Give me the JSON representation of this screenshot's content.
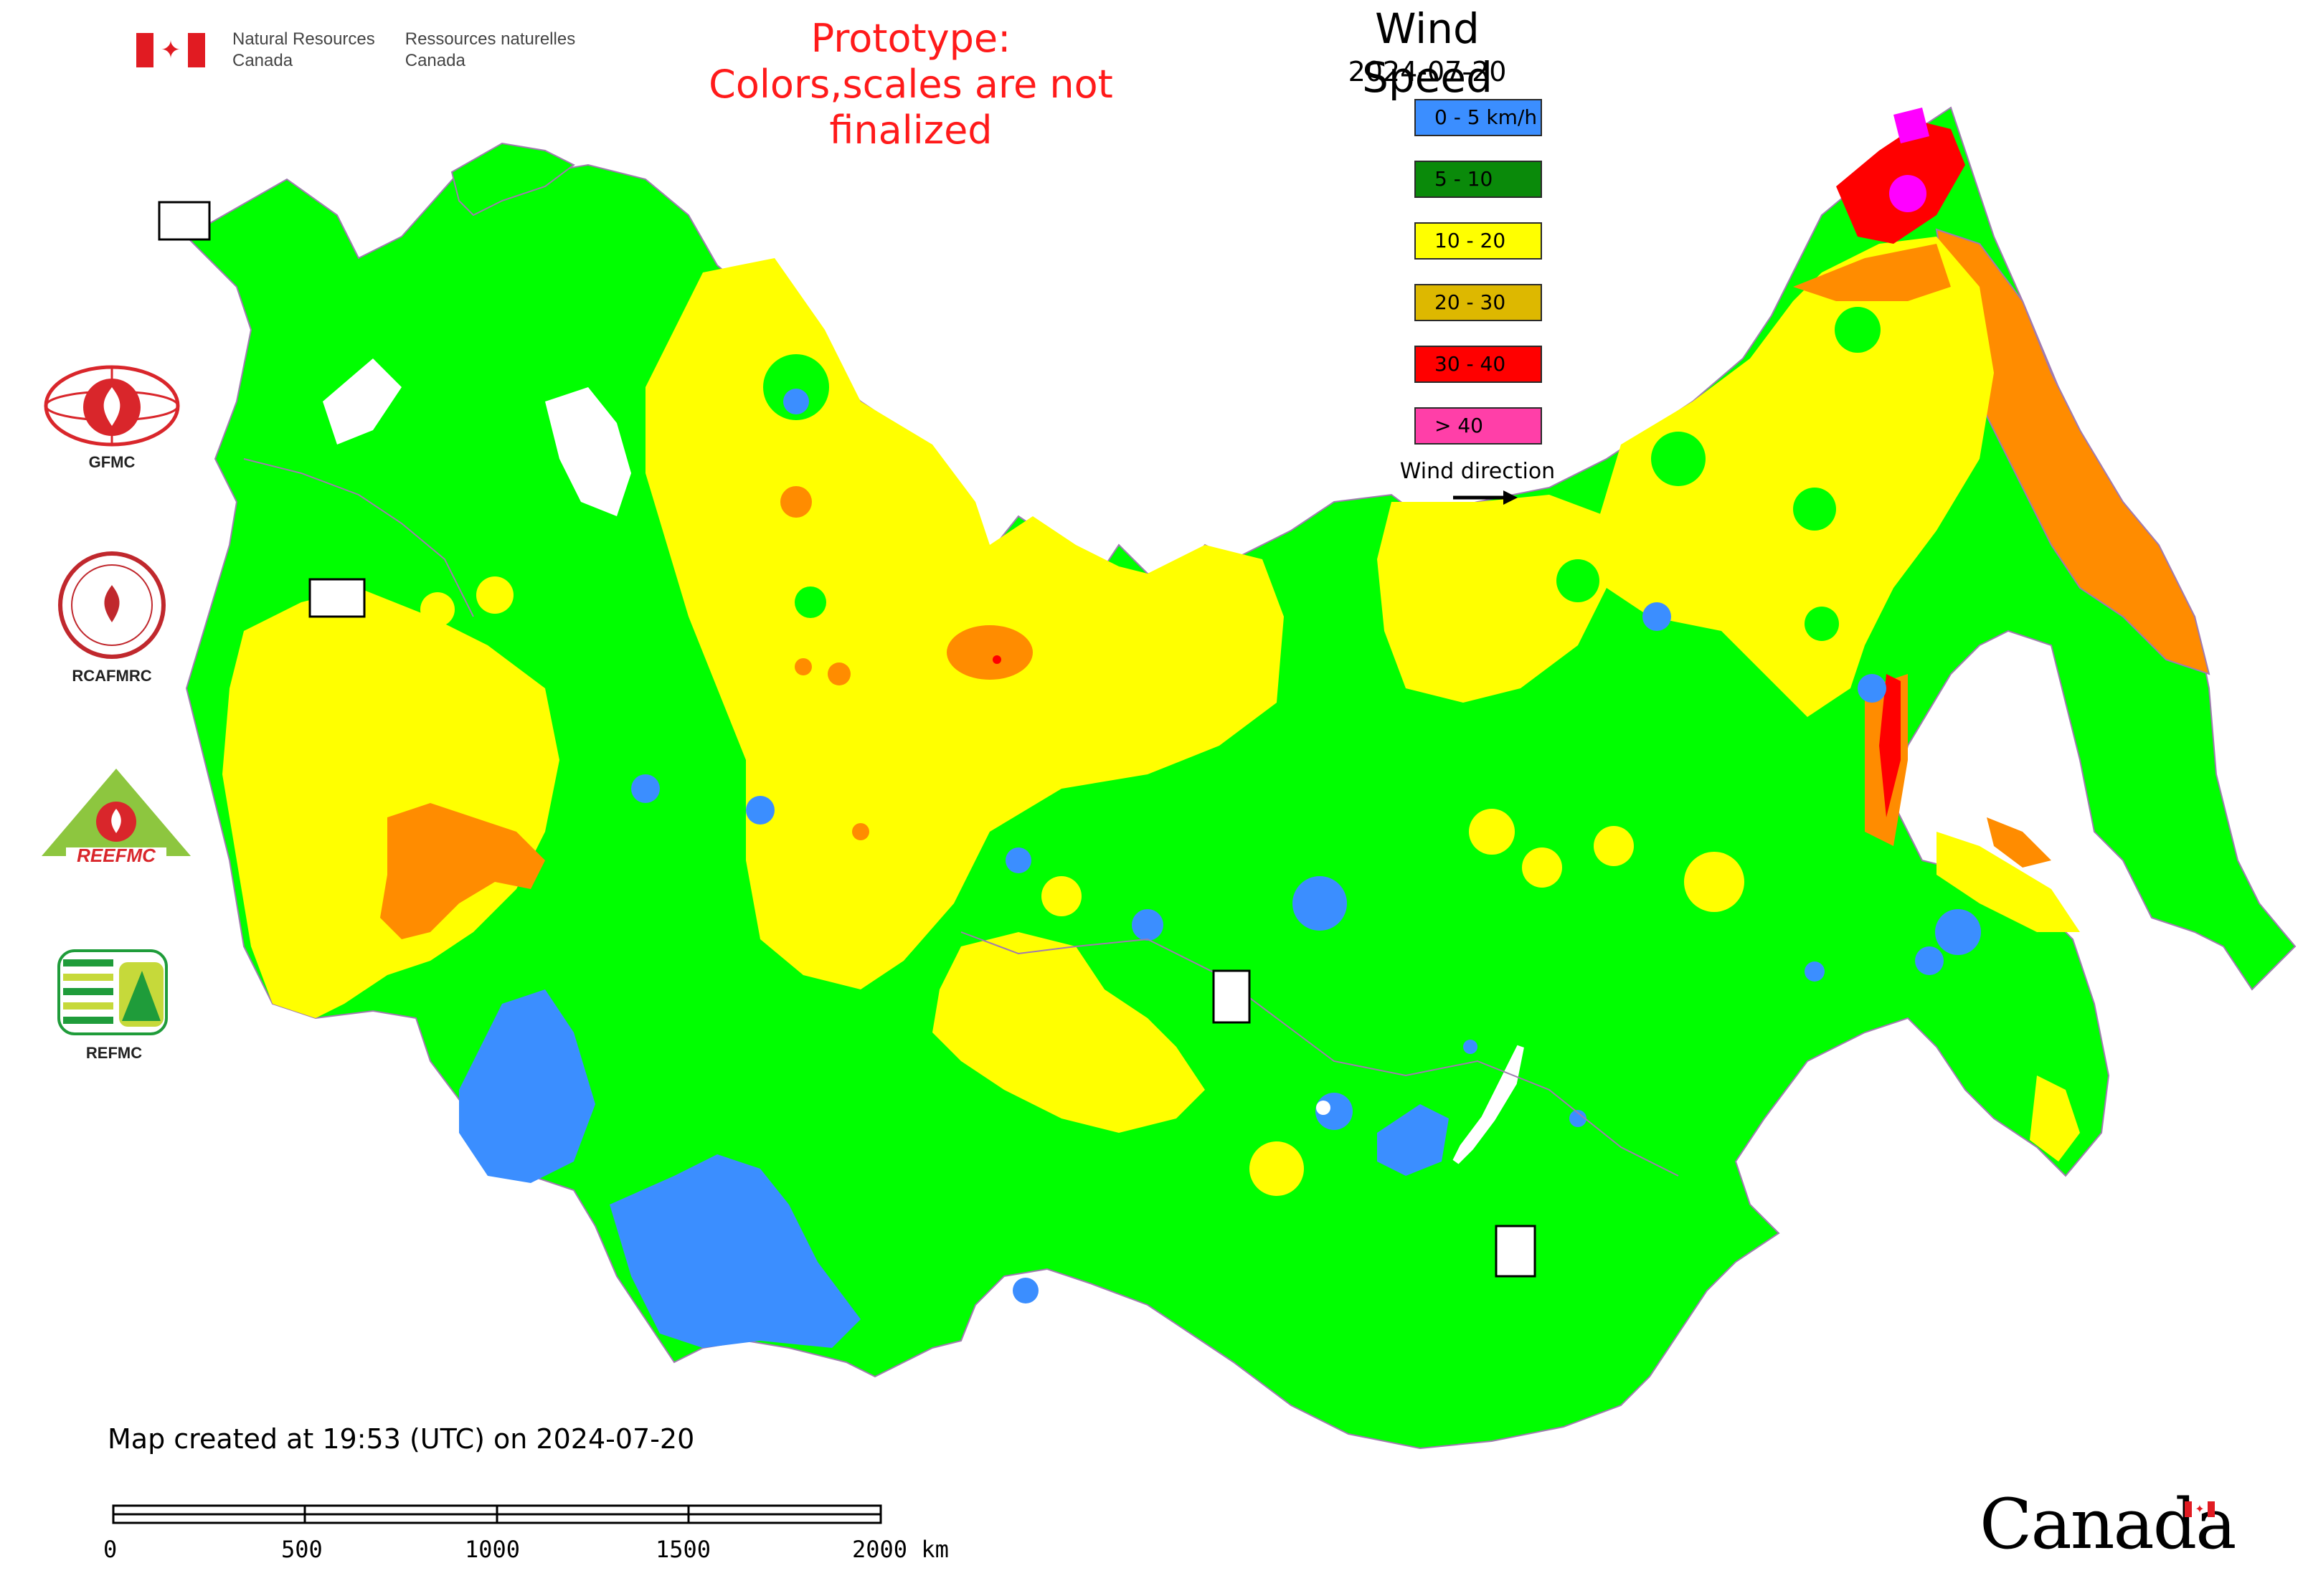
{
  "header": {
    "nrcan_en_line1": "Natural Resources",
    "nrcan_en_line2": "Canada",
    "nrcan_fr_line1": "Ressources naturelles",
    "nrcan_fr_line2": "Canada",
    "prototype_line1": "Prototype:",
    "prototype_line2": "Colors,scales are not finalized"
  },
  "legend": {
    "title": "Wind Speed",
    "date": "2024-07-20",
    "classes": [
      {
        "label": "0 - 5 km/h",
        "color": "#3b8eff"
      },
      {
        "label": "5 - 10",
        "color": "#0a8a0a"
      },
      {
        "label": "10 - 20",
        "color": "#ffff00"
      },
      {
        "label": "20 - 30",
        "color": "#ddb800"
      },
      {
        "label": "30 - 40",
        "color": "#ff0000"
      },
      {
        "label": "> 40",
        "color": "#ff3fa8"
      }
    ],
    "wind_direction_label": "Wind direction"
  },
  "map_colors": {
    "very_light": "#3b8eff",
    "light": "#00ff00",
    "moderate": "#ffff00",
    "fresh": "#ff8c00",
    "strong": "#ff0000",
    "extreme": "#ff00ff",
    "water": "#ffffff",
    "border": "#a07ab0"
  },
  "logos": {
    "gfmc": "GFMC",
    "rcafmrc": "RCAFMRC",
    "reefmc_mark": "REEFMC",
    "refmc": "REFMC"
  },
  "footer": {
    "created": "Map created at 19:53 (UTC) on 2024-07-20",
    "scale_ticks": [
      "0",
      "500",
      "1000",
      "1500",
      "2000 km"
    ]
  },
  "wordmark": "Canada"
}
